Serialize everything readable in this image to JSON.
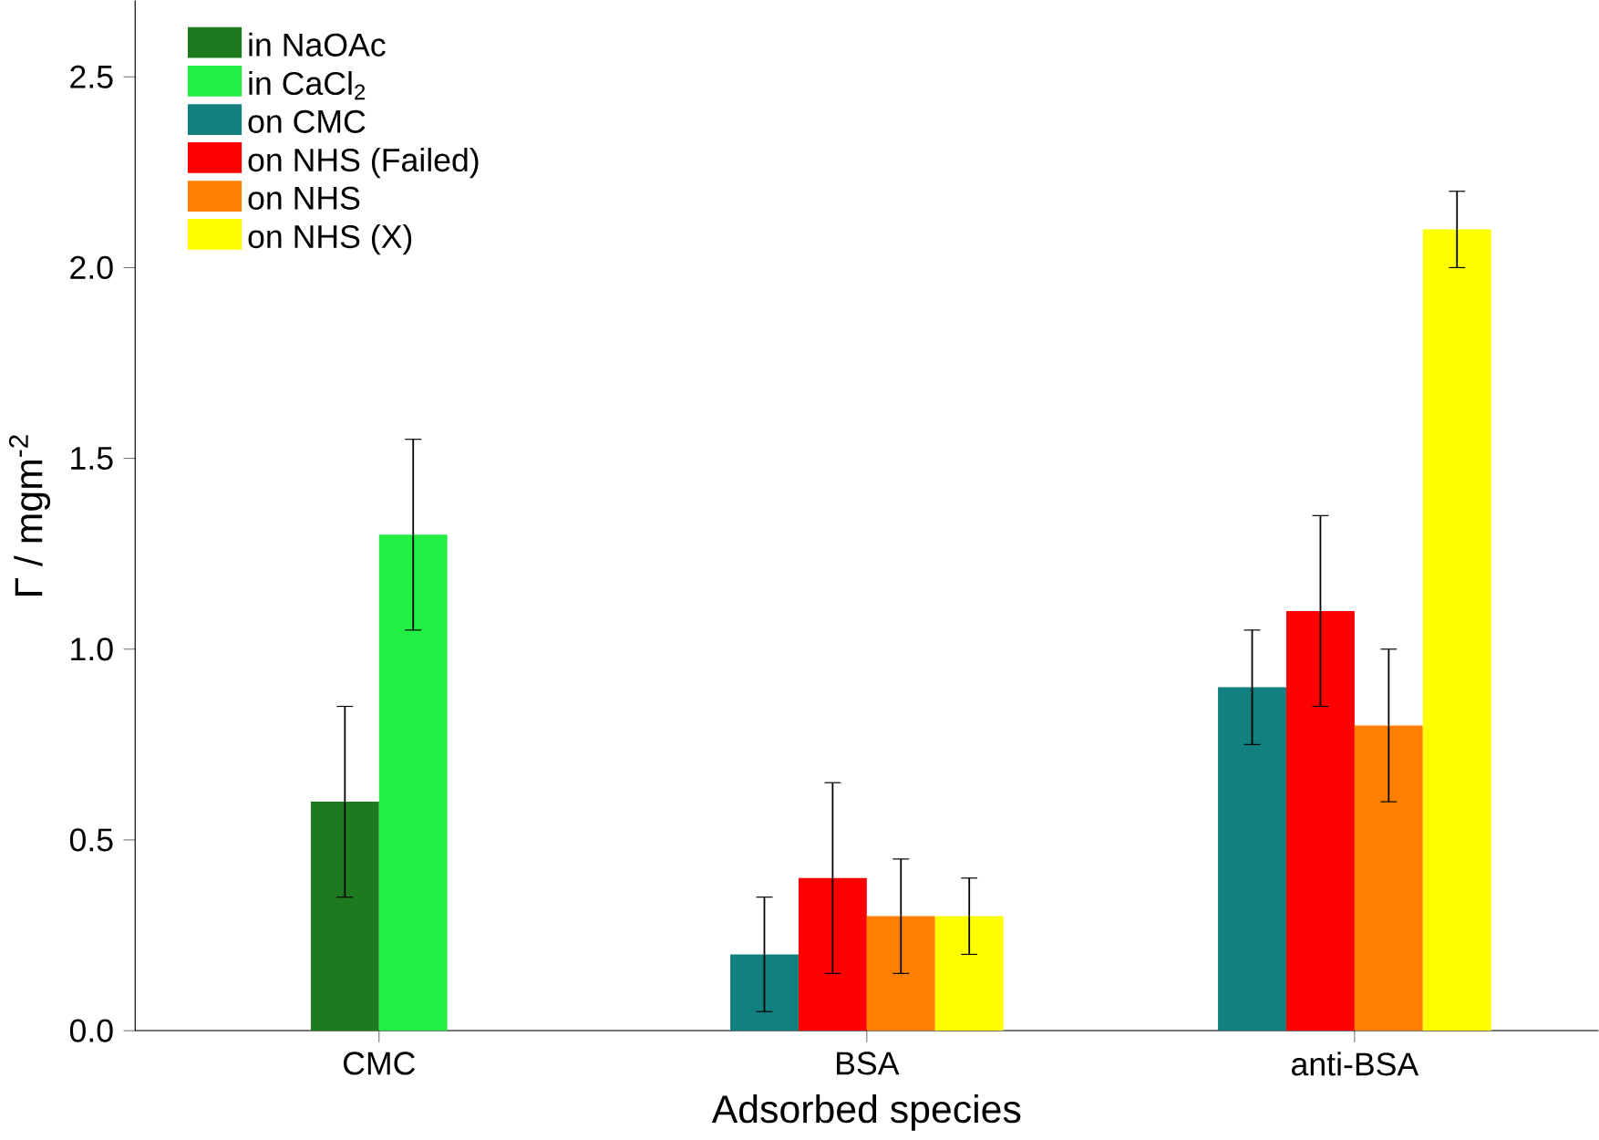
{
  "chart_data": {
    "type": "bar",
    "xlabel": "Adsorbed species",
    "ylabel": "Γ / mgm$^{-2}$",
    "categories": [
      "CMC",
      "BSA",
      "anti-BSA"
    ],
    "series": [
      {
        "name": "in NaOAc",
        "color": "#1e7a1e",
        "values": [
          0.6,
          null,
          null
        ],
        "errors": [
          0.25,
          null,
          null
        ]
      },
      {
        "name": "in CaCl$_{2}$",
        "color": "#22ee44",
        "values": [
          1.3,
          null,
          null
        ],
        "errors": [
          0.25,
          null,
          null
        ]
      },
      {
        "name": "on CMC",
        "color": "#138080",
        "values": [
          null,
          0.2,
          0.9
        ],
        "errors": [
          null,
          0.15,
          0.15
        ]
      },
      {
        "name": "on NHS (Failed)",
        "color": "#ff0000",
        "values": [
          null,
          0.4,
          1.1
        ],
        "errors": [
          null,
          0.25,
          0.25
        ]
      },
      {
        "name": "on NHS",
        "color": "#ff8000",
        "values": [
          null,
          0.3,
          0.8
        ],
        "errors": [
          null,
          0.15,
          0.2
        ]
      },
      {
        "name": "on NHS (X)",
        "color": "#ffff00",
        "values": [
          null,
          0.3,
          2.1
        ],
        "errors": [
          null,
          0.1,
          0.1
        ]
      }
    ],
    "ylim": [
      0,
      2.7
    ],
    "yticks": [
      {
        "value": 0,
        "label": "0.0"
      },
      {
        "value": 0.5,
        "label": "0.5"
      },
      {
        "value": 1,
        "label": "1.0"
      },
      {
        "value": 1.5,
        "label": "1.5"
      },
      {
        "value": 2,
        "label": "2.0"
      },
      {
        "value": 2.5,
        "label": "2.5"
      }
    ],
    "legend": "top left"
  }
}
